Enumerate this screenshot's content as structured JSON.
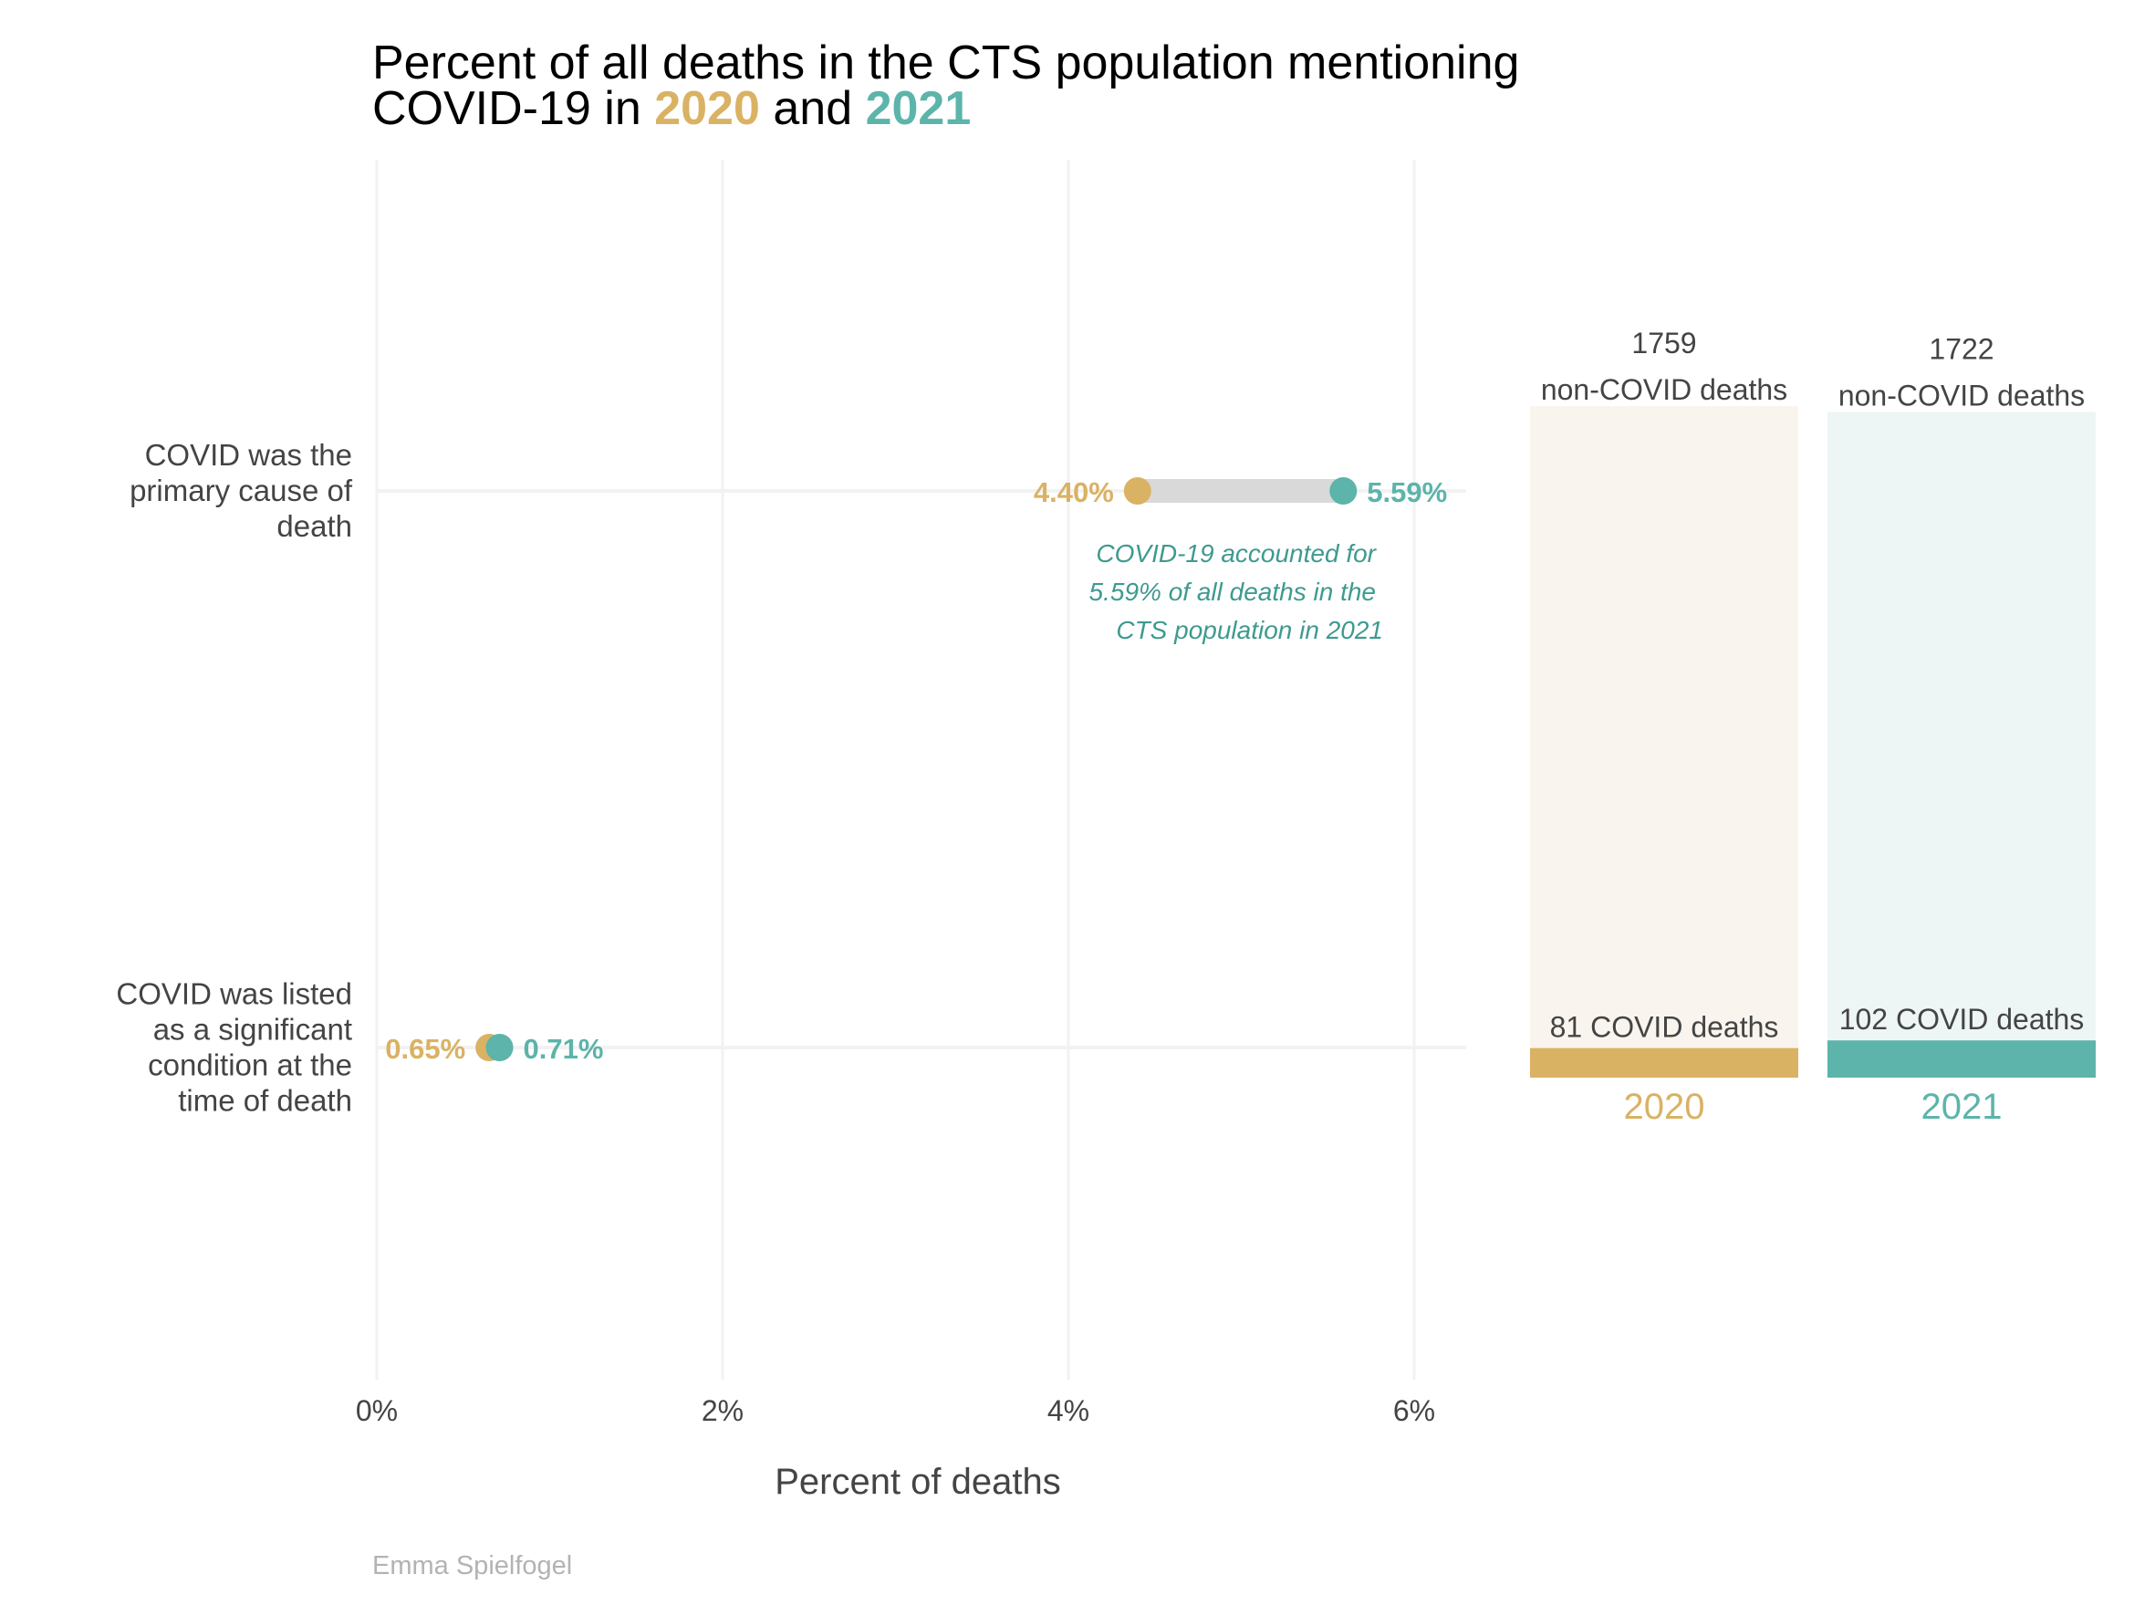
{
  "title": {
    "line1": "Percent of all deaths in the CTS population mentioning",
    "line2_prefix": "COVID-19 in ",
    "year_a": "2020",
    "line2_mid": " and ",
    "year_b": "2021"
  },
  "colors": {
    "y2020": "#D9B263",
    "y2021": "#5CB4AA",
    "connector": "#D9D9D9",
    "grid": "#F2F2F2",
    "text": "#444444",
    "annotation": "#3E9A8F",
    "bg2020": "#F9F5EE",
    "bg2021": "#EEF5F5",
    "caption": "#B3B3B3"
  },
  "chart_data": [
    {
      "type": "dumbbell",
      "xlabel": "Percent of deaths",
      "xlim": [
        0,
        6.3
      ],
      "xticks": [
        0,
        2,
        4,
        6
      ],
      "xtick_labels": [
        "0%",
        "2%",
        "4%",
        "6%"
      ],
      "grid": true,
      "categories": [
        {
          "label_lines": [
            "COVID was the",
            "primary cause of",
            "death"
          ],
          "values": {
            "2020": 4.4,
            "2021": 5.59
          },
          "value_labels": {
            "2020": "4.40%",
            "2021": "5.59%"
          }
        },
        {
          "label_lines": [
            "COVID was listed",
            "as a significant",
            "condition at the",
            "time of death"
          ],
          "values": {
            "2020": 0.65,
            "2021": 0.71
          },
          "value_labels": {
            "2020": "0.65%",
            "2021": "0.71%"
          }
        }
      ],
      "annotation_lines": [
        "COVID-19 accounted for",
        "5.59% of all deaths in the",
        "CTS population in 2021"
      ]
    },
    {
      "type": "bar",
      "stacked": true,
      "categories": [
        "2020",
        "2021"
      ],
      "series": [
        {
          "values": [
            81,
            102
          ]
        },
        {
          "values": [
            1759,
            1722
          ]
        }
      ],
      "bar_labels": [
        {
          "covid": "81 COVID deaths",
          "noncovid_count": "1759",
          "noncovid_text": "non-COVID deaths"
        },
        {
          "covid": "102 COVID deaths",
          "noncovid_count": "1722",
          "noncovid_text": "non-COVID deaths"
        }
      ]
    }
  ],
  "caption": "Emma Spielfogel"
}
